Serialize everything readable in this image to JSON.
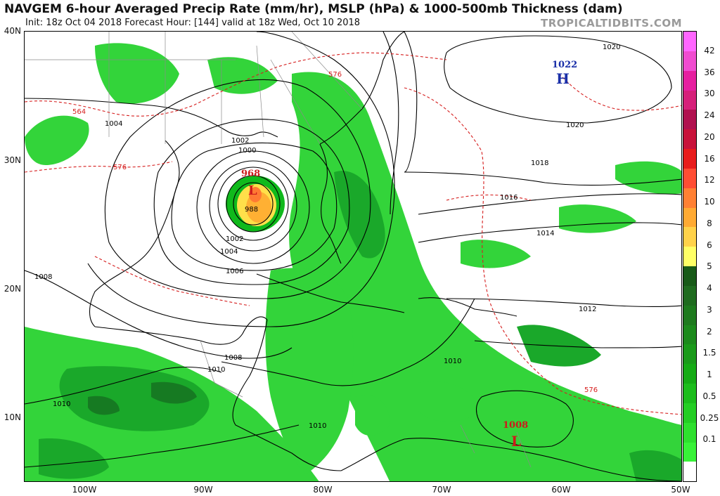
{
  "header": {
    "title": "NAVGEM 6-hour Averaged Precip Rate (mm/hr), MSLP (hPa) & 1000-500mb Thickness (dam)",
    "subtitle": "Init: 18z Oct 04 2018   Forecast Hour: [144]   valid at 18z Wed, Oct 10 2018",
    "brand": "TROPICALTIDBITS.COM"
  },
  "map": {
    "lat_labels": [
      "40N",
      "30N",
      "20N",
      "10N"
    ],
    "lon_labels": [
      "100W",
      "90W",
      "80W",
      "70W",
      "60W",
      "50W"
    ],
    "pressure_centers": [
      {
        "type": "H",
        "value": "1022",
        "color": "#1a2fa8"
      },
      {
        "type": "L",
        "value": "968",
        "color": "#cc1b1b"
      },
      {
        "type": "L",
        "value": "1008",
        "color": "#cc1b1b"
      }
    ],
    "isobar_labels": [
      "1020",
      "1020",
      "1018",
      "1016",
      "1014",
      "1012",
      "1010",
      "1010",
      "1010",
      "1010",
      "1008",
      "1008",
      "1006",
      "1004",
      "1004",
      "1002",
      "1002",
      "1000",
      "988"
    ],
    "thickness_labels": [
      "576",
      "576",
      "576",
      "564"
    ],
    "colors": {
      "precip_light": "#33d43a",
      "precip_mid": "#10b91c",
      "precip_dark": "#1a8f2a",
      "isobar": "#000000",
      "thickness": "#d61f1f",
      "border": "#8a8a8a"
    }
  },
  "colorbar": {
    "labels": [
      "42",
      "36",
      "30",
      "24",
      "20",
      "16",
      "12",
      "10",
      "8",
      "6",
      "5",
      "4",
      "3",
      "2",
      "1.5",
      "1",
      "0.5",
      "0.25",
      "0.1"
    ],
    "colors": [
      "#ffffff",
      "#38f238",
      "#2ee02e",
      "#24ce24",
      "#1cbd1c",
      "#15ab15",
      "#1a9a1a",
      "#1c8a1c",
      "#1e7a1e",
      "#1f6b1f",
      "#185a18",
      "#ffff66",
      "#ffd24a",
      "#ffaa33",
      "#ff8033",
      "#ff4d33",
      "#e81c1c",
      "#c8123a",
      "#b0114f",
      "#d6207a",
      "#e61fa0",
      "#f04cd0",
      "#ff66ff"
    ]
  }
}
